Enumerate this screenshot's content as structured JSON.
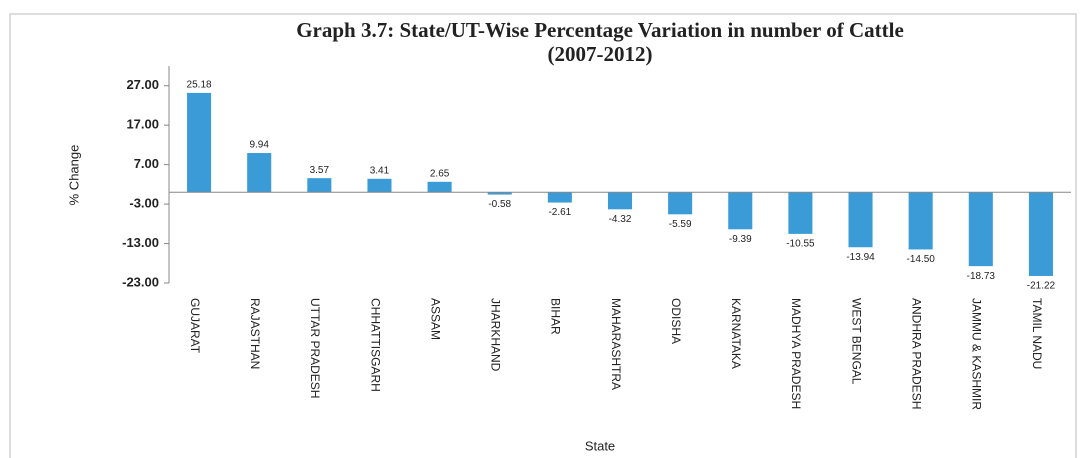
{
  "chart_data": {
    "type": "bar",
    "title": "Graph 3.7: State/UT-Wise Percentage Variation in number of Cattle",
    "subtitle": "(2007-2012)",
    "y_label": "% Change",
    "x_label": "State",
    "categories": [
      "GUJARAT",
      "RAJASTHAN",
      "UTTAR PRADESH",
      "CHHATTISGARH",
      "ASSAM",
      "JHARKHAND",
      "BIHAR",
      "MAHARASHTRA",
      "ODISHA",
      "KARNATAKA",
      "MADHYA PRADESH",
      "WEST BENGAL",
      "ANDHRA PRADESH",
      "JAMMU & KASHMIR",
      "TAMIL NADU"
    ],
    "values": [
      25.18,
      9.94,
      3.57,
      3.41,
      2.65,
      -0.58,
      -2.61,
      -4.32,
      -5.59,
      -9.39,
      -10.55,
      -13.94,
      -14.5,
      -18.73,
      -21.22
    ],
    "value_labels": [
      "25.18",
      "9.94",
      "3.57",
      "3.41",
      "2.65",
      "-0.58",
      "-2.61",
      "-4.32",
      "-5.59",
      "-9.39",
      "-10.55",
      "-13.94",
      "-14.50",
      "-18.73",
      "-21.22"
    ],
    "color": "#3b9bd6",
    "ylim": [
      -23,
      32
    ],
    "yticks": [
      {
        "value": 27,
        "label": "27.00"
      },
      {
        "value": 17,
        "label": "17.00"
      },
      {
        "value": 7,
        "label": "7.00"
      },
      {
        "value": -3,
        "label": "-3.00"
      },
      {
        "value": -13,
        "label": "-13.00"
      },
      {
        "value": -23,
        "label": "-23.00"
      }
    ],
    "grid": false
  }
}
